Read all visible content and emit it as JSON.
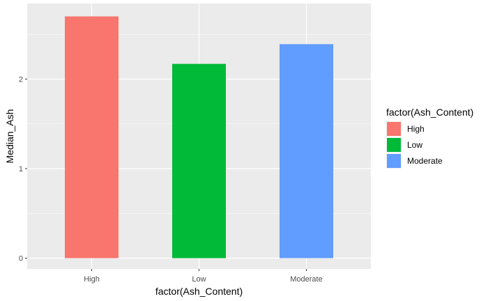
{
  "chart_data": {
    "type": "bar",
    "categories": [
      "High",
      "Low",
      "Moderate"
    ],
    "values": [
      2.7,
      2.17,
      2.39
    ],
    "colors": [
      "#F8766D",
      "#00BA38",
      "#619CFF"
    ],
    "xlabel": "factor(Ash_Content)",
    "ylabel": "Median_Ash",
    "ylim": [
      0,
      2.8
    ],
    "yticks": [
      0,
      1,
      2
    ],
    "ytick_labels": [
      "0",
      "1",
      "2"
    ],
    "grid": true,
    "panel_background": "#EBEBEB",
    "legend": {
      "title": "factor(Ash_Content)",
      "position": "right",
      "entries": [
        "High",
        "Low",
        "Moderate"
      ]
    }
  }
}
